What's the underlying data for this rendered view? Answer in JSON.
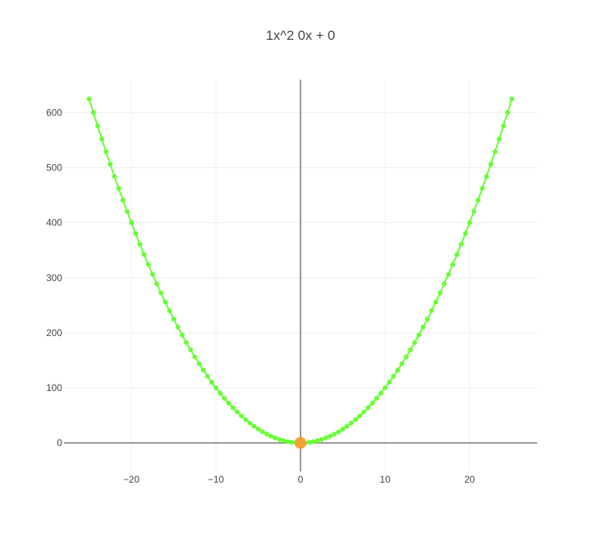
{
  "chart_data": {
    "type": "line",
    "title": "1x^2 0x + 0",
    "xlabel": "",
    "ylabel": "",
    "equation": {
      "a": 1,
      "b": 0,
      "c": 0
    },
    "xlim": [
      -28,
      28
    ],
    "ylim": [
      -52,
      660
    ],
    "x_ticks": [
      {
        "value": -20,
        "label": "−20"
      },
      {
        "value": -10,
        "label": "−10"
      },
      {
        "value": 0,
        "label": "0"
      },
      {
        "value": 10,
        "label": "10"
      },
      {
        "value": 20,
        "label": "20"
      }
    ],
    "y_ticks": [
      {
        "value": 0,
        "label": "0"
      },
      {
        "value": 100,
        "label": "100"
      },
      {
        "value": 200,
        "label": "200"
      },
      {
        "value": 300,
        "label": "300"
      },
      {
        "value": 400,
        "label": "400"
      },
      {
        "value": 500,
        "label": "500"
      },
      {
        "value": 600,
        "label": "600"
      }
    ],
    "grid": true,
    "legend": "none",
    "series": [
      {
        "type": "line+markers",
        "x_range": [
          -25,
          25
        ],
        "x_step": 0.5,
        "color": "#66ff33"
      },
      {
        "type": "scatter",
        "x": [
          0
        ],
        "y": [
          0
        ],
        "color": "#f5a030"
      }
    ],
    "colors": {
      "grid": "#eeeeee",
      "zero_line": "#777777",
      "text": "#444444"
    }
  }
}
